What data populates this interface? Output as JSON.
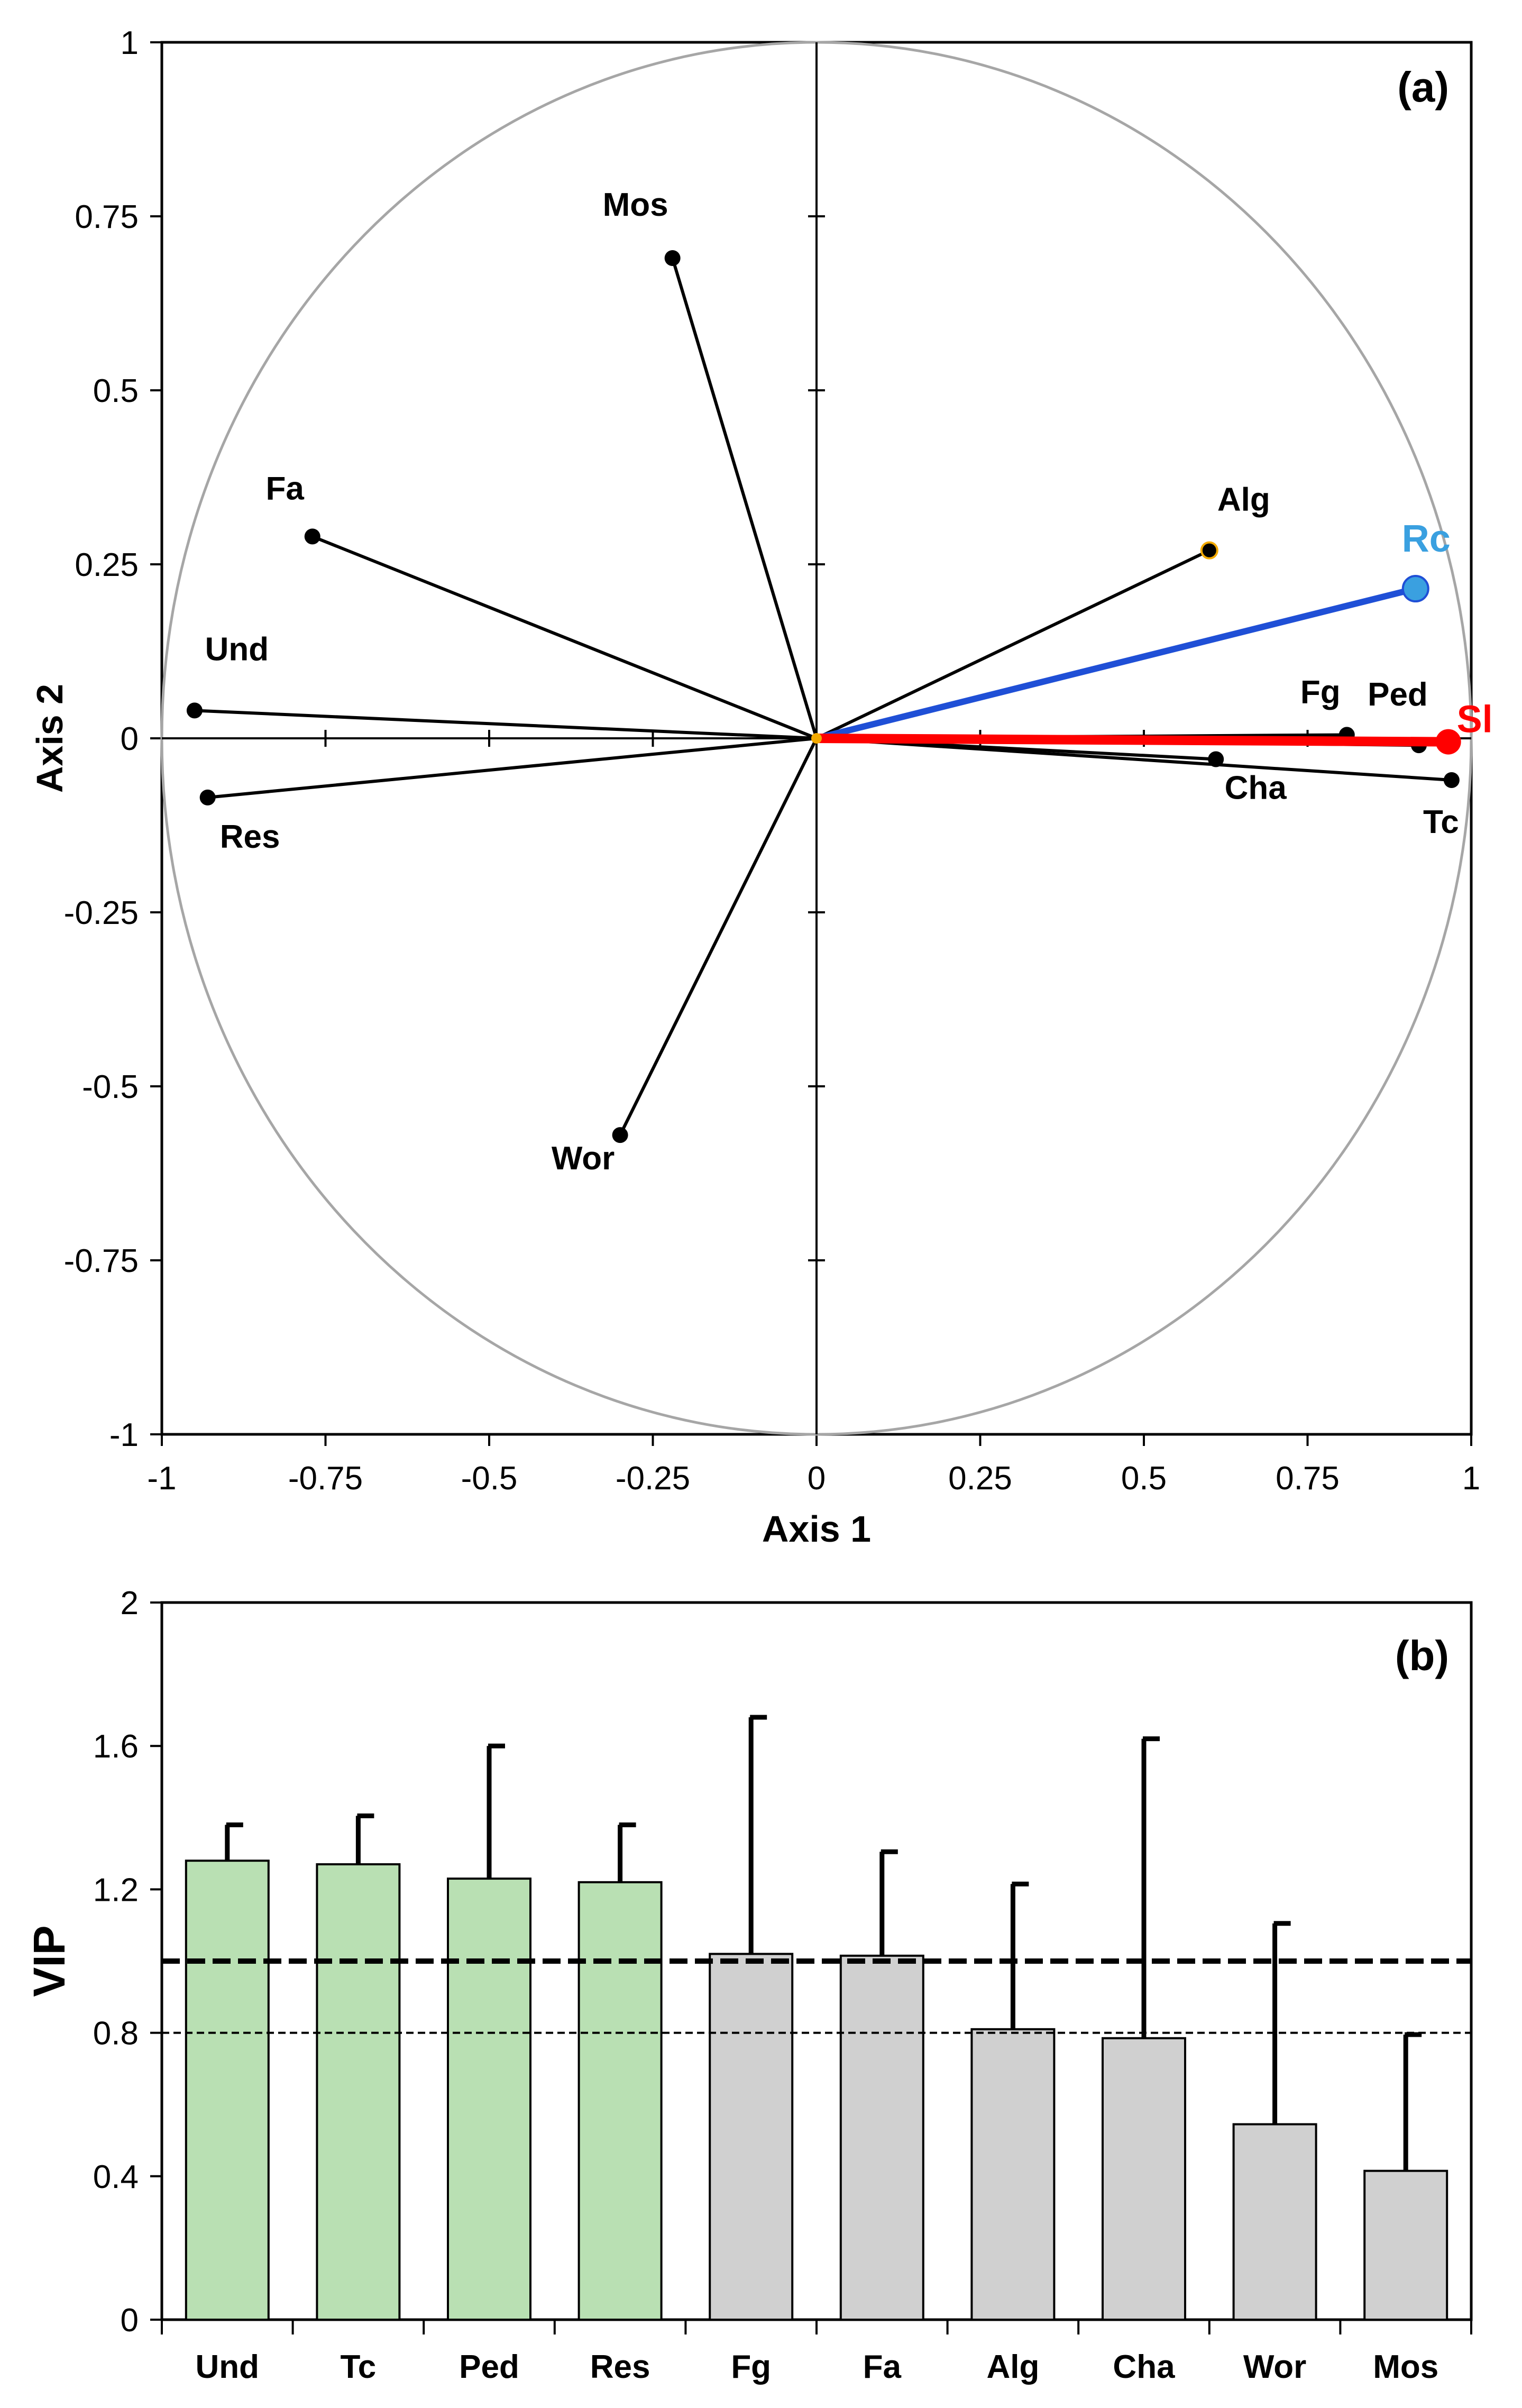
{
  "chart_data": [
    {
      "type": "scatter",
      "subtype": "correlation-circle",
      "panel_tag": "(a)",
      "xlabel": "Axis 1",
      "ylabel": "Axis 2",
      "xlim": [
        -1,
        1
      ],
      "ylim": [
        -1,
        1
      ],
      "x_ticks": [
        -1,
        -0.75,
        -0.5,
        -0.25,
        0,
        0.25,
        0.5,
        0.75,
        1
      ],
      "y_ticks": [
        -1,
        -0.75,
        -0.5,
        -0.25,
        0,
        0.25,
        0.5,
        0.75,
        1
      ],
      "x_tick_labels": [
        "-1",
        "-0.75",
        "-0.5",
        "-0.25",
        "0",
        "0.25",
        "0.5",
        "0.75",
        "1"
      ],
      "y_tick_labels": [
        "-1",
        "-0.75",
        "-0.5",
        "-0.25",
        "0",
        "0.25",
        "0.5",
        "0.75",
        "1"
      ],
      "colors": {
        "variable": "#000000",
        "rc": "#1f4fd6",
        "rc_marker": "#3aa0e0",
        "sl": "#ff0000",
        "circle": "#a6a6a6",
        "origin": "#f2a900"
      },
      "variables": [
        {
          "name": "Mos",
          "x": -0.22,
          "y": 0.69,
          "role": "predictor"
        },
        {
          "name": "Fa",
          "x": -0.77,
          "y": 0.29,
          "role": "predictor"
        },
        {
          "name": "Und",
          "x": -0.95,
          "y": 0.04,
          "role": "predictor"
        },
        {
          "name": "Res",
          "x": -0.93,
          "y": -0.085,
          "role": "predictor"
        },
        {
          "name": "Wor",
          "x": -0.3,
          "y": -0.57,
          "role": "predictor"
        },
        {
          "name": "Alg",
          "x": 0.6,
          "y": 0.27,
          "role": "predictor"
        },
        {
          "name": "Fg",
          "x": 0.81,
          "y": 0.005,
          "role": "predictor"
        },
        {
          "name": "Ped",
          "x": 0.92,
          "y": -0.01,
          "role": "predictor"
        },
        {
          "name": "Cha",
          "x": 0.61,
          "y": -0.03,
          "role": "predictor"
        },
        {
          "name": "Tc",
          "x": 0.97,
          "y": -0.06,
          "role": "predictor"
        },
        {
          "name": "Rc",
          "x": 0.915,
          "y": 0.215,
          "role": "response"
        },
        {
          "name": "Sl",
          "x": 0.965,
          "y": -0.005,
          "role": "response"
        }
      ]
    },
    {
      "type": "bar",
      "panel_tag": "(b)",
      "title": "",
      "xlabel": "",
      "ylabel": "VIP",
      "ylim": [
        0,
        2
      ],
      "y_ticks": [
        0,
        0.4,
        0.8,
        1.2,
        1.6,
        2
      ],
      "y_tick_labels": [
        "0",
        "0.4",
        "0.8",
        "1.2",
        "1.6",
        "2"
      ],
      "categories": [
        "Und",
        "Tc",
        "Ped",
        "Res",
        "Fg",
        "Fa",
        "Alg",
        "Cha",
        "Wor",
        "Mos"
      ],
      "values": [
        1.28,
        1.27,
        1.23,
        1.22,
        1.02,
        1.015,
        0.81,
        0.785,
        0.545,
        0.415
      ],
      "error_upper": [
        1.38,
        1.405,
        1.6,
        1.38,
        1.68,
        1.305,
        1.215,
        1.62,
        1.105,
        0.795
      ],
      "highlighted": [
        true,
        true,
        true,
        true,
        false,
        false,
        false,
        false,
        false,
        false
      ],
      "thresholds": [
        1.0,
        0.8
      ],
      "colors": {
        "highlight": "#b9e0b3",
        "normal": "#d0d0d0",
        "outline": "#000000"
      }
    }
  ]
}
